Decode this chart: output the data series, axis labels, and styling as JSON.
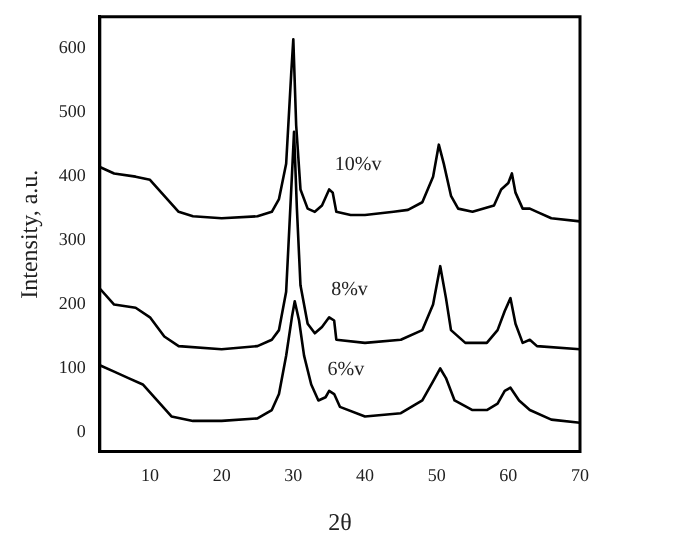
{
  "chart_data": {
    "type": "line",
    "xlabel": "2θ",
    "ylabel": "Intensity, a.u.",
    "xlim": [
      3,
      70
    ],
    "ylim": [
      -30,
      650
    ],
    "xticks": [
      10,
      20,
      30,
      40,
      50,
      60,
      70
    ],
    "yticks": [
      0,
      100,
      200,
      300,
      400,
      500,
      600
    ],
    "grid": false,
    "legend": false,
    "marker": "none",
    "line_style": "solid",
    "series": [
      {
        "name": "10%v",
        "color": "#000000",
        "x": [
          3,
          5,
          8,
          10,
          12,
          14,
          16,
          20,
          25,
          27,
          28,
          29,
          29.7,
          30,
          30.4,
          31,
          32,
          33,
          34,
          35,
          35.5,
          36,
          38,
          40,
          44,
          46,
          48,
          49.5,
          50.3,
          51,
          52,
          53,
          55,
          58,
          59,
          60,
          60.5,
          61,
          62,
          63,
          64,
          66,
          70
        ],
        "values": [
          415,
          405,
          400,
          395,
          370,
          345,
          338,
          335,
          338,
          345,
          365,
          420,
          560,
          615,
          480,
          380,
          350,
          345,
          355,
          380,
          375,
          345,
          340,
          340,
          345,
          348,
          360,
          400,
          450,
          420,
          370,
          350,
          345,
          355,
          380,
          390,
          405,
          375,
          350,
          350,
          345,
          335,
          330
        ]
      },
      {
        "name": "8%v",
        "color": "#000000",
        "x": [
          3,
          5,
          8,
          10,
          12,
          14,
          20,
          25,
          27,
          28,
          29,
          29.8,
          30.1,
          30.5,
          31,
          32,
          33,
          34,
          35,
          35.7,
          36,
          40,
          45,
          48,
          49.5,
          50.5,
          51.3,
          52,
          54,
          57,
          58.5,
          59.5,
          60.3,
          61,
          62,
          63,
          64,
          70
        ],
        "values": [
          225,
          200,
          195,
          180,
          150,
          135,
          130,
          135,
          145,
          160,
          220,
          400,
          470,
          350,
          230,
          170,
          155,
          165,
          180,
          175,
          145,
          140,
          145,
          160,
          200,
          260,
          210,
          160,
          140,
          140,
          160,
          190,
          210,
          170,
          140,
          145,
          135,
          130
        ]
      },
      {
        "name": "6%v",
        "color": "#000000",
        "x": [
          3,
          5,
          7,
          9,
          11,
          13,
          16,
          20,
          25,
          27,
          28,
          29,
          29.8,
          30.2,
          30.8,
          31.5,
          32.5,
          33.5,
          34.5,
          35,
          35.7,
          36.5,
          40,
          45,
          48,
          49.5,
          50.5,
          51.3,
          52.5,
          55,
          57,
          58.5,
          59.5,
          60.3,
          61.5,
          63,
          66,
          70
        ],
        "values": [
          105,
          95,
          85,
          75,
          50,
          25,
          18,
          18,
          22,
          35,
          60,
          120,
          180,
          205,
          175,
          120,
          75,
          50,
          55,
          65,
          60,
          40,
          25,
          30,
          50,
          80,
          100,
          85,
          50,
          35,
          35,
          45,
          65,
          70,
          50,
          35,
          20,
          15
        ]
      }
    ]
  }
}
